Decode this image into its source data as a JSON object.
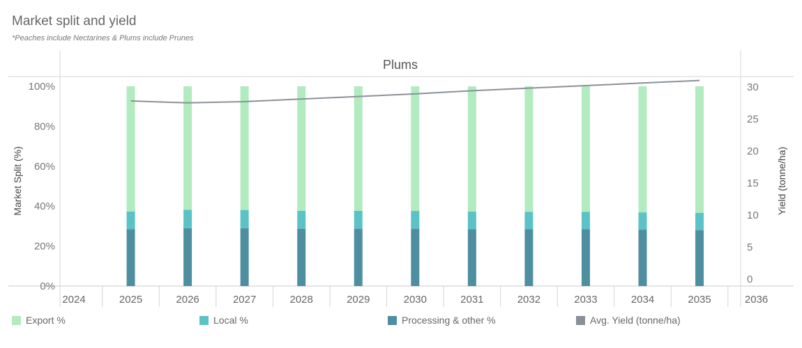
{
  "title": "Market split and yield",
  "subtitle": "*Peaches include Nectarines & Plums include Prunes",
  "chart_data": {
    "type": "bar",
    "panel_title": "Plums",
    "x_axis_years": [
      "2024",
      "2025",
      "2026",
      "2027",
      "2028",
      "2029",
      "2030",
      "2031",
      "2032",
      "2033",
      "2034",
      "2035",
      "2036"
    ],
    "categories": [
      "2025",
      "2026",
      "2027",
      "2028",
      "2029",
      "2030",
      "2031",
      "2032",
      "2033",
      "2034",
      "2035"
    ],
    "stacked": true,
    "series": [
      {
        "name": "Processing & other %",
        "color": "#4e8ea1",
        "values": [
          28.5,
          29,
          29,
          28.7,
          28.7,
          28.7,
          28.5,
          28.4,
          28.4,
          28.2,
          28.0
        ]
      },
      {
        "name": "Local %",
        "color": "#5bc2c6",
        "values": [
          8.8,
          9.2,
          9.1,
          9.0,
          9.0,
          8.9,
          8.8,
          8.8,
          8.8,
          8.7,
          8.7
        ]
      },
      {
        "name": "Export %",
        "color": "#b2ebbf",
        "values": [
          62.7,
          61.8,
          61.9,
          62.3,
          62.3,
          62.4,
          62.7,
          62.8,
          62.8,
          63.1,
          63.3
        ]
      }
    ],
    "line_series": {
      "name": "Avg. Yield (tonne/ha)",
      "color": "#8a9097",
      "values": [
        27.8,
        27.5,
        27.7,
        28.1,
        28.5,
        28.9,
        29.4,
        29.8,
        30.2,
        30.6,
        31.0
      ]
    },
    "ylabel_left": "Market Split (%)",
    "ylabel_right": "Yield (tonne/ha)",
    "y_left_ticks": [
      "0%",
      "20%",
      "40%",
      "60%",
      "80%",
      "100%"
    ],
    "y_left_range": [
      0,
      100
    ],
    "y_right_ticks": [
      "0",
      "5",
      "10",
      "15",
      "20",
      "25",
      "30"
    ],
    "y_right_range": [
      0,
      31
    ],
    "grid": false,
    "legend_position": "bottom",
    "legend": [
      {
        "label": "Export %",
        "color": "#b2ebbf"
      },
      {
        "label": "Local %",
        "color": "#5bc2c6"
      },
      {
        "label": "Processing & other %",
        "color": "#4e8ea1"
      },
      {
        "label": "Avg. Yield (tonne/ha)",
        "color": "#8a9097"
      }
    ]
  }
}
